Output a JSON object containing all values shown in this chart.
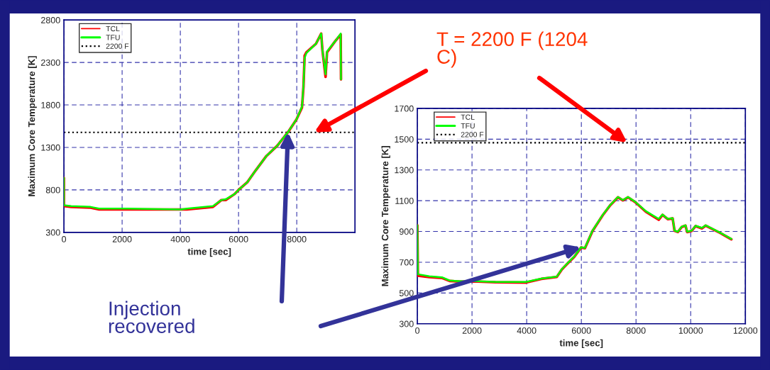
{
  "chart_data": [
    {
      "type": "line",
      "xlabel": "time [sec]",
      "ylabel": "Maximum Core Temperature [K]",
      "xlim": [
        0,
        10000
      ],
      "xticks": [
        0,
        2000,
        4000,
        6000,
        8000
      ],
      "ylim": [
        300,
        2800
      ],
      "yticks": [
        300,
        800,
        1300,
        1800,
        2300,
        2800
      ],
      "grid": true,
      "legend": "top left",
      "series": [
        {
          "name": "TCL",
          "color": "#ff0000",
          "x": [
            0,
            0,
            250,
            915,
            1210,
            2170,
            4010,
            4230,
            5120,
            5410,
            5560,
            5860,
            6000,
            6300,
            6590,
            6960,
            7330,
            7700,
            7990,
            8180,
            8230,
            8270,
            8330,
            8660,
            8840,
            8880,
            8990,
            9040,
            9320,
            9510,
            9520
          ],
          "values": [
            940,
            610,
            600,
            590,
            570,
            570,
            570,
            570,
            600,
            680,
            680,
            750,
            800,
            890,
            1030,
            1200,
            1320,
            1480,
            1630,
            1770,
            2010,
            2380,
            2420,
            2520,
            2640,
            2450,
            2130,
            2420,
            2550,
            2630,
            2100
          ]
        },
        {
          "name": "TFU",
          "color": "#00ff00",
          "x": [
            0,
            0,
            250,
            915,
            1210,
            2170,
            4010,
            4230,
            5120,
            5410,
            5560,
            5860,
            6000,
            6300,
            6590,
            6960,
            7330,
            7700,
            7990,
            8180,
            8230,
            8270,
            8330,
            8660,
            8840,
            8880,
            8990,
            9040,
            9320,
            9510,
            9520
          ],
          "values": [
            940,
            620,
            610,
            600,
            580,
            580,
            570,
            580,
            610,
            680,
            690,
            750,
            800,
            890,
            1030,
            1200,
            1320,
            1480,
            1630,
            1780,
            2020,
            2350,
            2410,
            2520,
            2640,
            2450,
            2160,
            2430,
            2550,
            2640,
            2100
          ]
        }
      ],
      "ref_lines": [
        {
          "axis": "y",
          "value": 1477,
          "label": "2200 F",
          "color": "#000000",
          "line_style": "dotted"
        }
      ],
      "annotations": [
        "T = 2200 F (1204\nC)",
        "Injection\nrecovered"
      ]
    },
    {
      "type": "line",
      "xlabel": "time [sec]",
      "ylabel": "Maximum Core Temperature [K]",
      "xlim": [
        0,
        12000
      ],
      "xticks": [
        0,
        2000,
        4000,
        6000,
        8000,
        10000,
        12000
      ],
      "ylim": [
        300,
        1700
      ],
      "yticks": [
        300,
        500,
        700,
        900,
        1100,
        1300,
        1500,
        1700
      ],
      "grid": true,
      "legend": "top left",
      "series": [
        {
          "name": "TCL",
          "color": "#ff0000",
          "x": [
            0,
            20,
            440,
            900,
            1180,
            1560,
            2210,
            2860,
            3980,
            4540,
            5100,
            5290,
            5470,
            5750,
            5990,
            6130,
            6410,
            6780,
            7060,
            7340,
            7520,
            7710,
            7990,
            8360,
            8830,
            8970,
            9160,
            9340,
            9410,
            9530,
            9670,
            9810,
            9870,
            10040,
            10180,
            10410,
            10550,
            11070,
            11490
          ],
          "values": [
            940,
            612,
            603,
            598,
            578,
            574,
            574,
            570,
            568,
            592,
            604,
            654,
            687,
            737,
            796,
            791,
            904,
            1005,
            1071,
            1122,
            1102,
            1122,
            1088,
            1028,
            976,
            1008,
            980,
            985,
            904,
            896,
            929,
            938,
            896,
            904,
            935,
            920,
            938,
            891,
            849
          ]
        },
        {
          "name": "TFU",
          "color": "#00ff00",
          "x": [
            0,
            20,
            440,
            900,
            1180,
            1560,
            2210,
            2860,
            3980,
            4540,
            5100,
            5290,
            5470,
            5750,
            5990,
            6130,
            6410,
            6780,
            7060,
            7340,
            7520,
            7710,
            7990,
            8360,
            8830,
            8970,
            9160,
            9340,
            9410,
            9530,
            9670,
            9810,
            9870,
            10040,
            10180,
            10410,
            10550,
            11070,
            11490
          ],
          "values": [
            940,
            622,
            609,
            602,
            581,
            576,
            576,
            572,
            572,
            594,
            606,
            656,
            689,
            739,
            798,
            793,
            906,
            1007,
            1073,
            1124,
            1104,
            1124,
            1090,
            1032,
            982,
            1010,
            982,
            987,
            906,
            898,
            931,
            940,
            898,
            906,
            937,
            923,
            940,
            893,
            851
          ]
        }
      ],
      "ref_lines": [
        {
          "axis": "y",
          "value": 1477,
          "label": "2200 F",
          "color": "#000000",
          "line_style": "dotted"
        }
      ]
    }
  ]
}
